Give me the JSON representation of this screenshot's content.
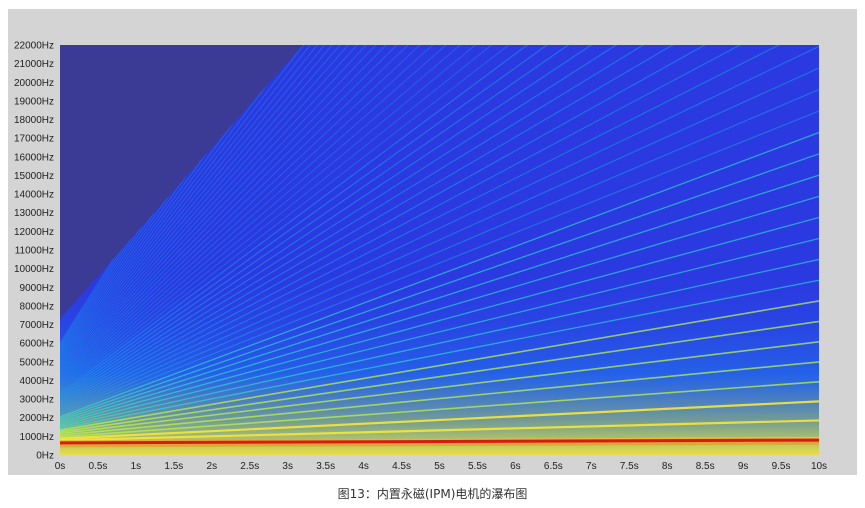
{
  "chart_data": {
    "type": "heatmap",
    "title": "",
    "xlabel": "",
    "ylabel": "",
    "x_unit": "s",
    "y_unit": "Hz",
    "xlim": [
      0,
      10
    ],
    "ylim": [
      0,
      22000
    ],
    "x_ticks": [
      {
        "value": 0,
        "label": "0s"
      },
      {
        "value": 0.5,
        "label": "0.5s"
      },
      {
        "value": 1,
        "label": "1s"
      },
      {
        "value": 1.5,
        "label": "1.5s"
      },
      {
        "value": 2,
        "label": "2s"
      },
      {
        "value": 2.5,
        "label": "2.5s"
      },
      {
        "value": 3,
        "label": "3s"
      },
      {
        "value": 3.5,
        "label": "3.5s"
      },
      {
        "value": 4,
        "label": "4s"
      },
      {
        "value": 4.5,
        "label": "4.5s"
      },
      {
        "value": 5,
        "label": "5s"
      },
      {
        "value": 5.5,
        "label": "5.5s"
      },
      {
        "value": 6,
        "label": "6s"
      },
      {
        "value": 6.5,
        "label": "6.5s"
      },
      {
        "value": 7,
        "label": "7s"
      },
      {
        "value": 7.5,
        "label": "7.5s"
      },
      {
        "value": 8,
        "label": "8s"
      },
      {
        "value": 8.5,
        "label": "8.5s"
      },
      {
        "value": 9,
        "label": "9s"
      },
      {
        "value": 9.5,
        "label": "9.5s"
      },
      {
        "value": 10,
        "label": "10s"
      }
    ],
    "y_ticks": [
      {
        "value": 0,
        "label": "0Hz"
      },
      {
        "value": 1000,
        "label": "1000Hz"
      },
      {
        "value": 2000,
        "label": "2000Hz"
      },
      {
        "value": 3000,
        "label": "3000Hz"
      },
      {
        "value": 4000,
        "label": "4000Hz"
      },
      {
        "value": 5000,
        "label": "5000Hz"
      },
      {
        "value": 6000,
        "label": "6000Hz"
      },
      {
        "value": 7000,
        "label": "7000Hz"
      },
      {
        "value": 8000,
        "label": "8000Hz"
      },
      {
        "value": 9000,
        "label": "9000Hz"
      },
      {
        "value": 10000,
        "label": "10000Hz"
      },
      {
        "value": 11000,
        "label": "11000Hz"
      },
      {
        "value": 12000,
        "label": "12000Hz"
      },
      {
        "value": 13000,
        "label": "13000Hz"
      },
      {
        "value": 14000,
        "label": "14000Hz"
      },
      {
        "value": 15000,
        "label": "15000Hz"
      },
      {
        "value": 16000,
        "label": "16000Hz"
      },
      {
        "value": 17000,
        "label": "17000Hz"
      },
      {
        "value": 18000,
        "label": "18000Hz"
      },
      {
        "value": 19000,
        "label": "19000Hz"
      },
      {
        "value": 20000,
        "label": "20000Hz"
      },
      {
        "value": 21000,
        "label": "21000Hz"
      },
      {
        "value": 22000,
        "label": "22000Hz"
      }
    ],
    "dominant_line": {
      "f_start_hz": 650,
      "f_end_hz": 800
    },
    "harmonic_lines": {
      "count": 60,
      "f_start_min_hz": 700,
      "f_start_max_hz": 6000,
      "f_end_min_hz": 900,
      "f_end_max_hz": 70000
    },
    "no_data_region": {
      "t0_s": 0,
      "f_at_t0_hz": 7300,
      "t_s": 3.2,
      "f_at_t_hz": 22000
    },
    "colormap": [
      "#1e00a8",
      "#2a45f0",
      "#1aa8f5",
      "#2ee6d6",
      "#b8f050",
      "#f5e63c",
      "#f09020",
      "#d41c10"
    ],
    "colors": {
      "background_panel": "#d4d4d4",
      "no_data": "#3b3b96",
      "base": "#2a3ae0"
    }
  },
  "caption": "图13：内置永磁(IPM)电机的瀑布图"
}
